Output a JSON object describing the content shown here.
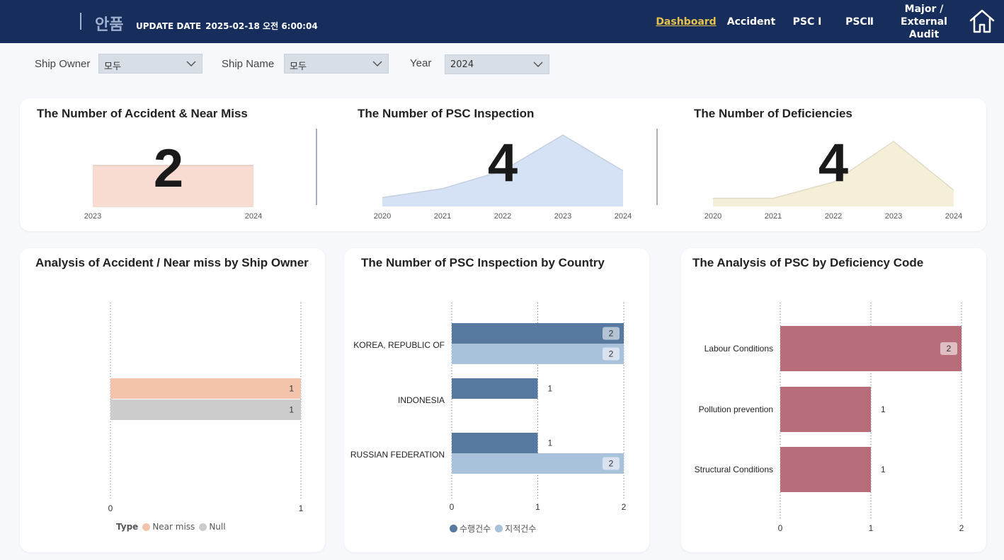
{
  "header": {
    "brand": "안품",
    "update_label": "UPDATE DATE",
    "update_value": "2025-02-18 오전 6:00:04",
    "nav": [
      "Dashboard",
      "Accident",
      "PSC Ⅰ",
      "PSCⅡ",
      "Major /",
      "External Audit"
    ],
    "home_icon": "home-icon"
  },
  "filters": {
    "ship_owner_label": "Ship Owner",
    "ship_owner_value": "모두",
    "ship_name_label": "Ship Name",
    "ship_name_value": "모두",
    "year_label": "Year",
    "year_value": "2024"
  },
  "kpis": {
    "accident": {
      "title": "The Number of Accident & Near Miss",
      "value": "2"
    },
    "psc": {
      "title": "The Number of PSC Inspection",
      "value": "4"
    },
    "deficiencies": {
      "title": "The Number of Deficiencies",
      "value": "4"
    }
  },
  "cards": {
    "owner_title": "Analysis of Accident / Near miss by Ship Owner",
    "owner_legend_title": "Type",
    "country_title": "The Number of PSC Inspection by Country",
    "code_title": "The Analysis of PSC by Deficiency Code"
  },
  "colors": {
    "accident": "#f8dbd1",
    "psc": "#d5e1f4",
    "deficiency": "#f4efd6",
    "near_miss": "#f4c3ab",
    "null": "#cccccc",
    "performed": "#57799f",
    "pointed": "#a9c2db",
    "code": "#b86e7a"
  },
  "chart_data": [
    {
      "type": "area",
      "x": [
        "2023",
        "2024"
      ],
      "series": [
        {
          "values": [
            2,
            2
          ]
        }
      ]
    },
    {
      "type": "area",
      "x": [
        "2020",
        "2021",
        "2022",
        "2023",
        "2024"
      ],
      "series": [
        {
          "values": [
            0.5,
            1,
            2,
            4,
            2
          ]
        }
      ]
    },
    {
      "type": "area",
      "x": [
        "2020",
        "2021",
        "2022",
        "2023",
        "2024"
      ],
      "series": [
        {
          "values": [
            0.5,
            0.5,
            1.5,
            4,
            1
          ]
        }
      ]
    },
    {
      "type": "bar",
      "orientation": "horizontal",
      "categories": [
        ""
      ],
      "series": [
        {
          "name": "Near miss",
          "values": [
            1
          ]
        },
        {
          "name": "Null",
          "values": [
            1
          ]
        }
      ],
      "xlim": [
        0,
        1
      ],
      "xticks": [
        "0",
        "1"
      ],
      "legend": "bottom"
    },
    {
      "type": "bar",
      "orientation": "horizontal",
      "categories": [
        "KOREA, REPUBLIC OF",
        "INDONESIA",
        "RUSSIAN FEDERATION"
      ],
      "series": [
        {
          "name": "수행건수",
          "values": [
            2,
            1,
            1
          ]
        },
        {
          "name": "지적건수",
          "values": [
            2,
            null,
            2
          ]
        }
      ],
      "xlim": [
        0,
        2
      ],
      "xticks": [
        "0",
        "1",
        "2"
      ],
      "legend": "bottom"
    },
    {
      "type": "bar",
      "orientation": "horizontal",
      "categories": [
        "Labour Conditions",
        "Pollution prevention",
        "Structural Conditions"
      ],
      "series": [
        {
          "values": [
            2,
            1,
            1
          ]
        }
      ],
      "xlim": [
        0,
        2
      ],
      "xticks": [
        "0",
        "1",
        "2"
      ]
    }
  ]
}
